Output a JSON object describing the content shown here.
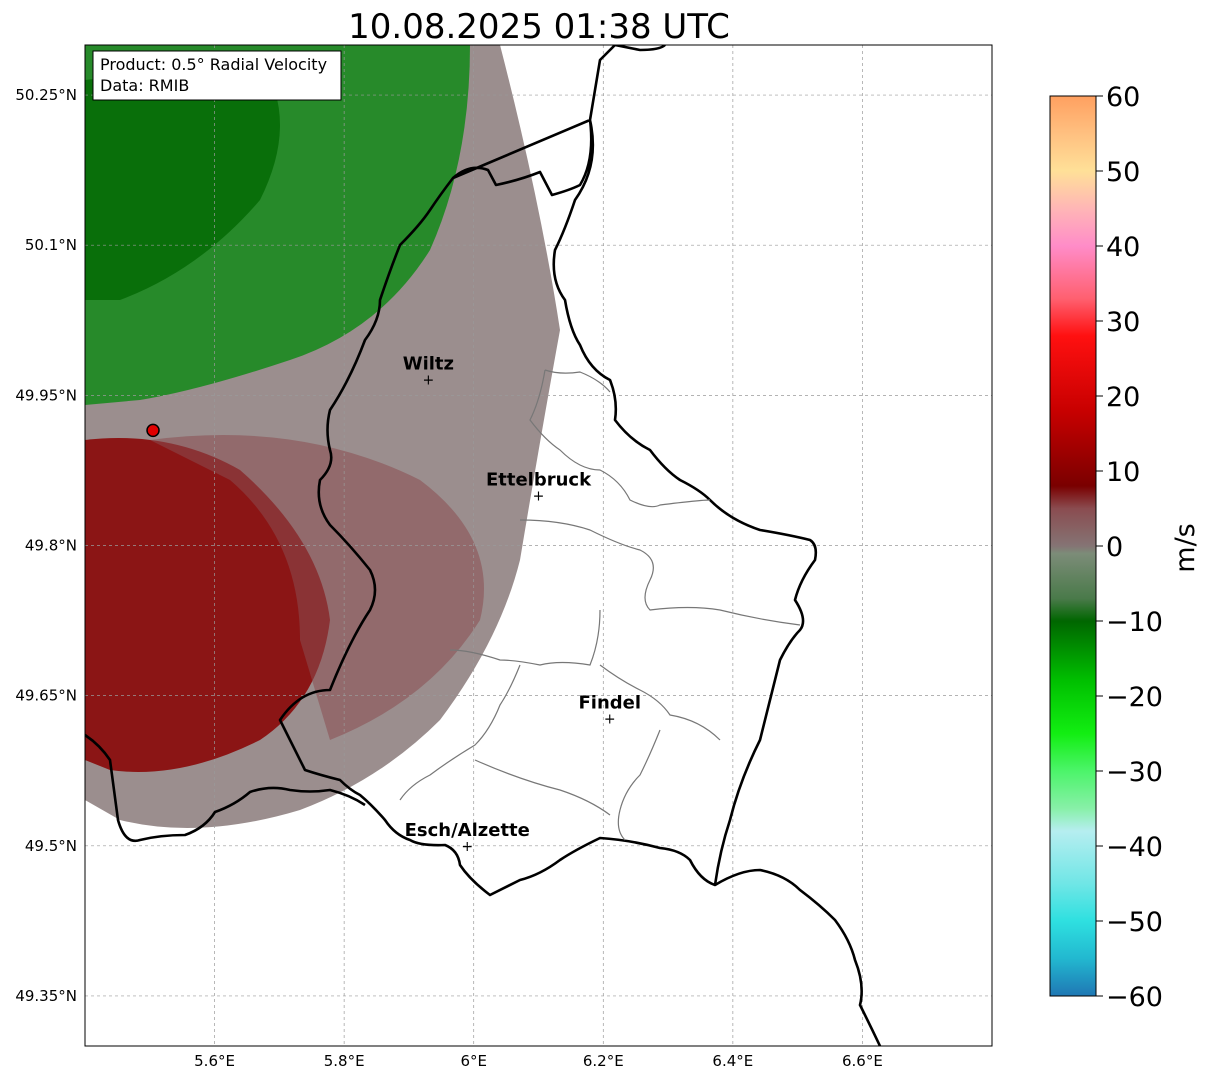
{
  "map": {
    "title": "10.08.2025 01:38 UTC",
    "info_box": {
      "product": "Product: 0.5° Radial Velocity",
      "data_source": "Data: RMIB"
    },
    "lon_ticks": [
      {
        "value": 5.6,
        "label": "5.6°E"
      },
      {
        "value": 5.8,
        "label": "5.8°E"
      },
      {
        "value": 6.0,
        "label": "6°E"
      },
      {
        "value": 6.2,
        "label": "6.2°E"
      },
      {
        "value": 6.4,
        "label": "6.4°E"
      },
      {
        "value": 6.6,
        "label": "6.6°E"
      }
    ],
    "lat_ticks": [
      {
        "value": 50.25,
        "label": "50.25°N"
      },
      {
        "value": 50.1,
        "label": "50.1°N"
      },
      {
        "value": 49.95,
        "label": "49.95°N"
      },
      {
        "value": 49.8,
        "label": "49.8°N"
      },
      {
        "value": 49.65,
        "label": "49.65°N"
      },
      {
        "value": 49.5,
        "label": "49.5°N"
      },
      {
        "value": 49.35,
        "label": "49.35°N"
      }
    ],
    "extent": {
      "lon_min": 5.4,
      "lon_max": 6.8,
      "lat_min": 49.3,
      "lat_max": 50.3
    },
    "radar_site": {
      "lon": 5.505,
      "lat": 49.915,
      "color": "#e00000"
    },
    "cities": [
      {
        "name": "Wiltz",
        "lon": 5.93,
        "lat": 49.966
      },
      {
        "name": "Ettelbruck",
        "lon": 6.1,
        "lat": 49.85
      },
      {
        "name": "Findel",
        "lon": 6.21,
        "lat": 49.627
      },
      {
        "name": "Esch/Alzette",
        "lon": 5.99,
        "lat": 49.5
      }
    ],
    "gridlines": true
  },
  "colorbar": {
    "label": "m/s",
    "vmin": -60,
    "vmax": 60,
    "ticks": [
      {
        "value": 60,
        "label": "60"
      },
      {
        "value": 50,
        "label": "50"
      },
      {
        "value": 40,
        "label": "40"
      },
      {
        "value": 30,
        "label": "30"
      },
      {
        "value": 20,
        "label": "20"
      },
      {
        "value": 10,
        "label": "10"
      },
      {
        "value": 0,
        "label": "0"
      },
      {
        "value": -10,
        "label": "−10"
      },
      {
        "value": -20,
        "label": "−20"
      },
      {
        "value": -30,
        "label": "−30"
      },
      {
        "value": -40,
        "label": "−40"
      },
      {
        "value": -50,
        "label": "−50"
      },
      {
        "value": -60,
        "label": "−60"
      }
    ],
    "stops": [
      {
        "value": -60,
        "color": "#1f77b4"
      },
      {
        "value": -55,
        "color": "#22b8d0"
      },
      {
        "value": -50,
        "color": "#2ee0e0"
      },
      {
        "value": -45,
        "color": "#70e6e6"
      },
      {
        "value": -38,
        "color": "#b6eef0"
      },
      {
        "value": -35,
        "color": "#88f0a8"
      },
      {
        "value": -30,
        "color": "#4cf46a"
      },
      {
        "value": -25,
        "color": "#12ee12"
      },
      {
        "value": -18,
        "color": "#00c000"
      },
      {
        "value": -10,
        "color": "#006600"
      },
      {
        "value": -7,
        "color": "#4a7a4a"
      },
      {
        "value": -1,
        "color": "#7c8c78"
      },
      {
        "value": 0,
        "color": "#857474"
      },
      {
        "value": 5,
        "color": "#8a4c50"
      },
      {
        "value": 8,
        "color": "#7a0000"
      },
      {
        "value": 18,
        "color": "#c80000"
      },
      {
        "value": 28,
        "color": "#ff1010"
      },
      {
        "value": 33,
        "color": "#ff6070"
      },
      {
        "value": 40,
        "color": "#ff8cc8"
      },
      {
        "value": 45,
        "color": "#ffb6b6"
      },
      {
        "value": 50,
        "color": "#ffe098"
      },
      {
        "value": 55,
        "color": "#ffc080"
      },
      {
        "value": 60,
        "color": "#ffa060"
      }
    ]
  }
}
